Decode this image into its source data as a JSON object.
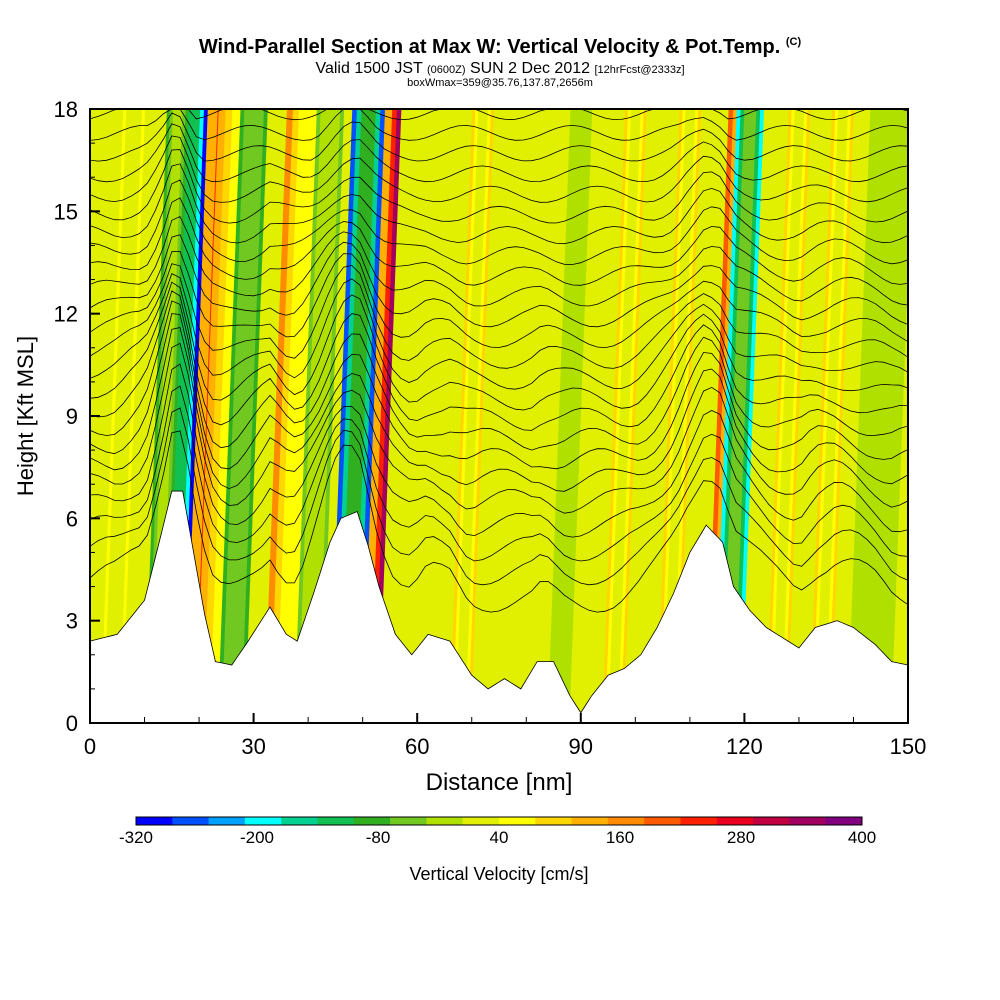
{
  "header": {
    "title": "Wind-Parallel Section at Max W: Vertical Velocity & Pot.Temp.",
    "title_mark": "(C)",
    "valid_a": "Valid 1500 JST",
    "valid_b": "(0600Z)",
    "valid_c": "SUN 2 Dec 2012",
    "valid_d": "[12hrFcst@2333z]",
    "boxw": "boxWmax=359@35.76,137.87,2656m"
  },
  "chart_data": {
    "type": "heatmap",
    "xlabel": "Distance [nm]",
    "ylabel": "Height [Kft MSL]",
    "xlim": [
      0,
      150
    ],
    "ylim": [
      0,
      18
    ],
    "x_ticks": [
      "0",
      "30",
      "60",
      "90",
      "120",
      "150"
    ],
    "y_ticks": [
      "0",
      "3",
      "6",
      "9",
      "12",
      "15",
      "18"
    ],
    "x_tick_values": [
      0,
      30,
      60,
      90,
      120,
      150
    ],
    "y_tick_values": [
      0,
      3,
      6,
      9,
      12,
      15,
      18
    ],
    "colorbar": {
      "label": "Vertical Velocity [cm/s]",
      "labels": [
        "-320",
        "-200",
        "-80",
        "40",
        "160",
        "280",
        "400"
      ],
      "label_values": [
        -320,
        -200,
        -80,
        40,
        160,
        280,
        400
      ],
      "min": -320,
      "max": 400,
      "colors": [
        "#0000ff",
        "#0050ff",
        "#00a0ff",
        "#00ffff",
        "#00d090",
        "#10c050",
        "#30b020",
        "#70c820",
        "#b0e000",
        "#e0f000",
        "#ffff00",
        "#ffd700",
        "#ffb000",
        "#ff8c00",
        "#ff5a00",
        "#ff2000",
        "#e8001e",
        "#c00040",
        "#a00060",
        "#800080"
      ]
    },
    "background_w": 25,
    "terrain_kft": [
      [
        0,
        2.4
      ],
      [
        5,
        2.6
      ],
      [
        10,
        3.6
      ],
      [
        13,
        5.5
      ],
      [
        15,
        6.8
      ],
      [
        17,
        6.8
      ],
      [
        19,
        5.0
      ],
      [
        21,
        3.2
      ],
      [
        23,
        1.8
      ],
      [
        26,
        1.7
      ],
      [
        29,
        2.4
      ],
      [
        33,
        3.4
      ],
      [
        36,
        2.6
      ],
      [
        38,
        2.4
      ],
      [
        41,
        3.8
      ],
      [
        44,
        5.3
      ],
      [
        46,
        6.0
      ],
      [
        49,
        6.2
      ],
      [
        51,
        5.2
      ],
      [
        53,
        4.0
      ],
      [
        56,
        2.6
      ],
      [
        59,
        2.0
      ],
      [
        62,
        2.6
      ],
      [
        66,
        2.4
      ],
      [
        70,
        1.4
      ],
      [
        73,
        1.0
      ],
      [
        76,
        1.3
      ],
      [
        79,
        1.0
      ],
      [
        82,
        1.8
      ],
      [
        85,
        1.8
      ],
      [
        88,
        0.8
      ],
      [
        90,
        0.3
      ],
      [
        92,
        0.8
      ],
      [
        95,
        1.4
      ],
      [
        98,
        1.6
      ],
      [
        101,
        2.0
      ],
      [
        104,
        2.8
      ],
      [
        107,
        3.8
      ],
      [
        110,
        5.0
      ],
      [
        113,
        5.8
      ],
      [
        116,
        5.3
      ],
      [
        118,
        4.0
      ],
      [
        121,
        3.3
      ],
      [
        124,
        2.8
      ],
      [
        127,
        2.5
      ],
      [
        130,
        2.2
      ],
      [
        133,
        2.8
      ],
      [
        137,
        3.0
      ],
      [
        140,
        2.8
      ],
      [
        144,
        2.3
      ],
      [
        147,
        1.8
      ],
      [
        150,
        1.7
      ]
    ],
    "updraft_bands": [
      {
        "x": [
          18,
          20,
          24
        ],
        "w": 360
      },
      {
        "x": [
          50,
          52,
          56
        ],
        "w": 359
      },
      {
        "x": [
          24,
          26,
          33
        ],
        "w": 140
      },
      {
        "x": [
          36,
          38,
          44
        ],
        "w": 160
      },
      {
        "x": [
          115,
          118,
          121
        ],
        "w": 200
      },
      {
        "x": [
          68,
          70,
          72
        ],
        "w": 100
      },
      {
        "x": [
          96,
          98,
          100
        ],
        "w": 80
      },
      {
        "x": [
          126,
          128,
          130
        ],
        "w": 110
      },
      {
        "x": [
          134,
          136,
          138
        ],
        "w": 80
      },
      {
        "x": [
          106,
          108,
          110
        ],
        "w": 80
      },
      {
        "x": [
          4,
          6,
          8
        ],
        "w": 60
      }
    ],
    "downdraft_bands": [
      {
        "x": [
          15,
          17,
          20
        ],
        "w": -300
      },
      {
        "x": [
          47,
          49,
          53
        ],
        "w": -260
      },
      {
        "x": [
          26,
          28,
          31
        ],
        "w": -100
      },
      {
        "x": [
          12,
          14,
          16
        ],
        "w": -80
      },
      {
        "x": [
          40,
          42,
          45
        ],
        "w": -40
      },
      {
        "x": [
          117,
          119,
          122
        ],
        "w": -180
      },
      {
        "x": [
          142,
          145,
          150
        ],
        "w": -20
      },
      {
        "x": [
          86,
          88,
          90
        ],
        "w": -20
      }
    ],
    "isentrope_base_levels_kft": [
      3.6,
      4.4,
      5.1,
      5.8,
      6.5,
      7.1,
      7.7,
      8.3,
      8.9,
      9.5,
      10.1,
      10.7,
      11.3,
      11.9,
      12.5,
      13.1,
      13.7,
      14.3,
      14.9,
      15.5,
      16.1,
      16.7,
      17.3,
      17.9
    ]
  }
}
